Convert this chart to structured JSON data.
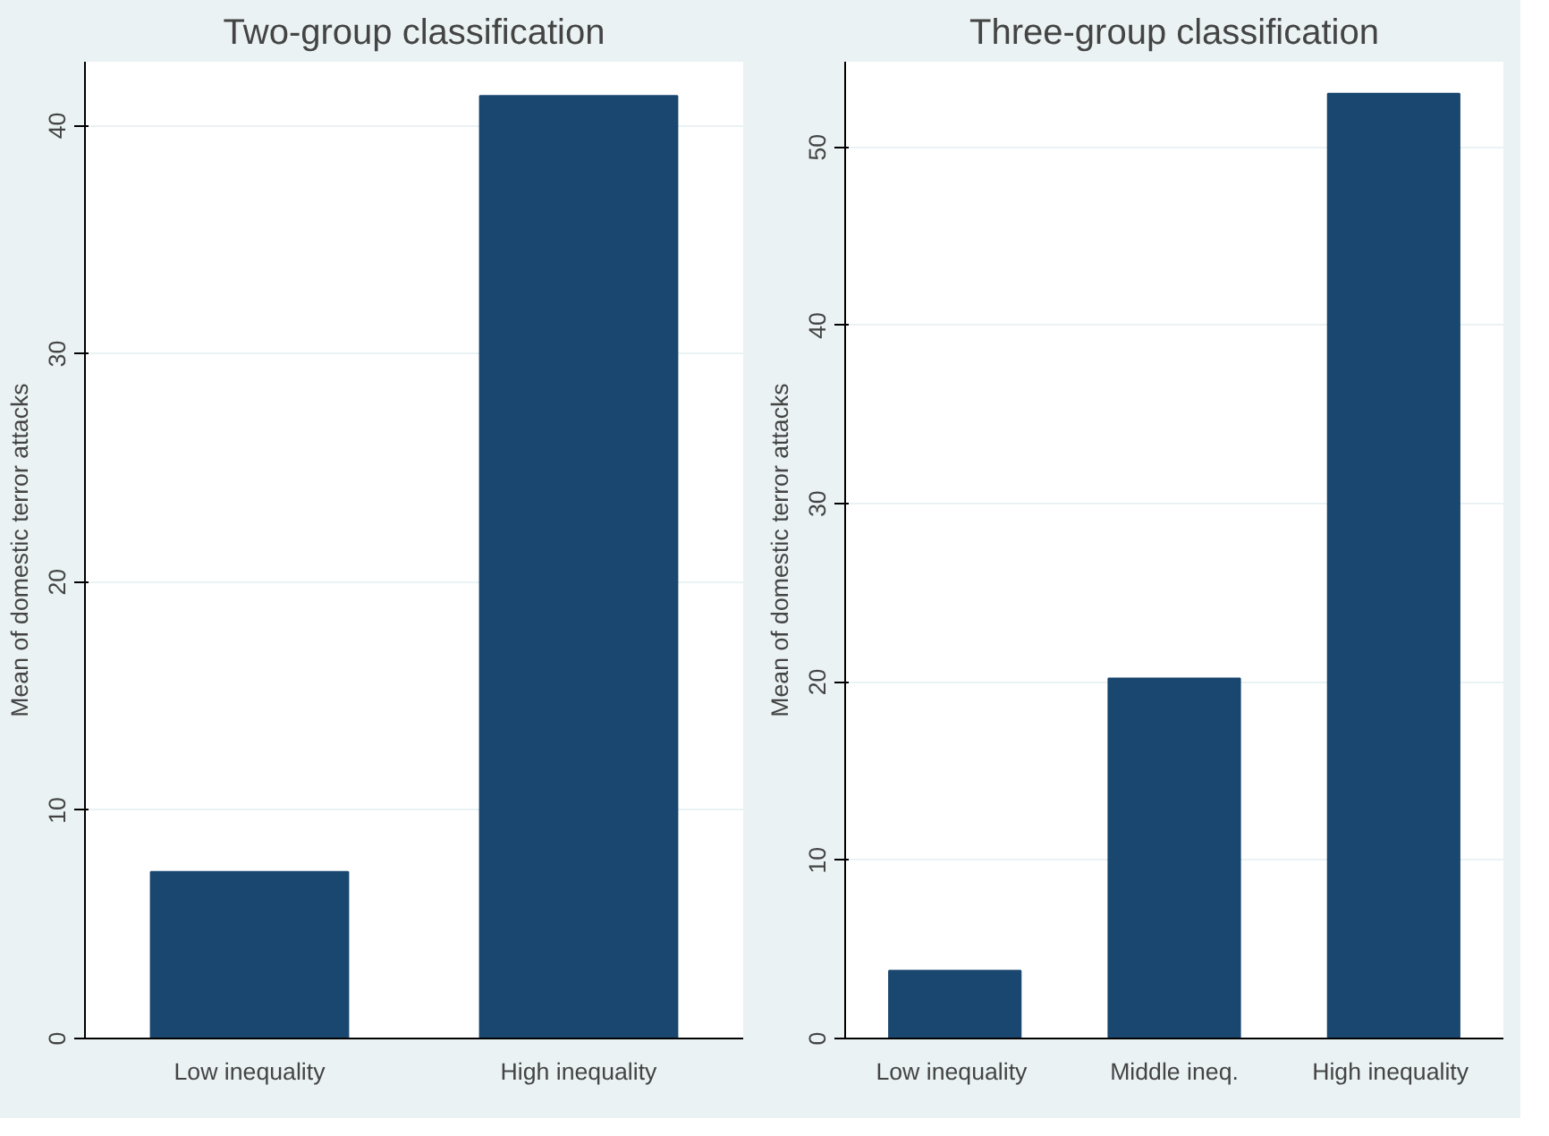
{
  "chart_data": [
    {
      "type": "bar",
      "title": "Two-group classification",
      "ylabel": "Mean of domestic terror attacks",
      "categories": [
        "Low inequality",
        "High inequality"
      ],
      "values": [
        7.3,
        41.3
      ],
      "color": "#1a476f",
      "ylim": [
        0,
        42.8
      ],
      "yticks": [
        0,
        10,
        20,
        30,
        40
      ],
      "grid": "y"
    },
    {
      "type": "bar",
      "title": "Three-group classification",
      "ylabel": "Mean of domestic terror attacks",
      "categories": [
        "Low  inequality",
        "Middle ineq.",
        "High  inequality"
      ],
      "values": [
        3.8,
        20.2,
        53.0
      ],
      "color": "#1a476f",
      "ylim": [
        0,
        54.8
      ],
      "yticks": [
        0,
        10,
        20,
        30,
        40,
        50
      ],
      "grid": "y"
    }
  ]
}
